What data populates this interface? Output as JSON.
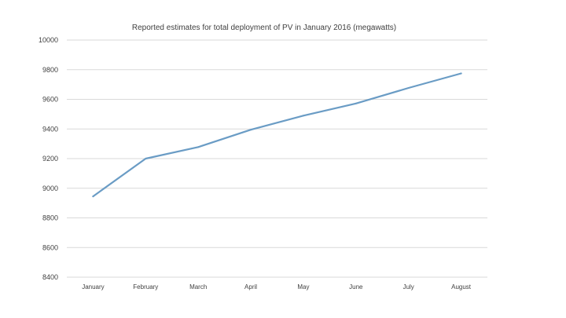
{
  "chart_data": {
    "type": "line",
    "title": "Reported estimates for total deployment of PV in January 2016 (megawatts)",
    "xlabel": "",
    "ylabel": "",
    "categories": [
      "January",
      "February",
      "March",
      "April",
      "May",
      "June",
      "July",
      "August"
    ],
    "series": [
      {
        "values": [
          8945,
          9200,
          9278,
          9395,
          9490,
          9572,
          9677,
          9775
        ]
      }
    ],
    "ylim": [
      8400,
      10000
    ],
    "yticks": [
      8400,
      8600,
      8800,
      9000,
      9200,
      9400,
      9600,
      9800,
      10000
    ],
    "grid": true,
    "legend": "none",
    "colors": {
      "line": "#6a9cc5",
      "grid": "#d9d9d9",
      "text": "#404040"
    }
  }
}
